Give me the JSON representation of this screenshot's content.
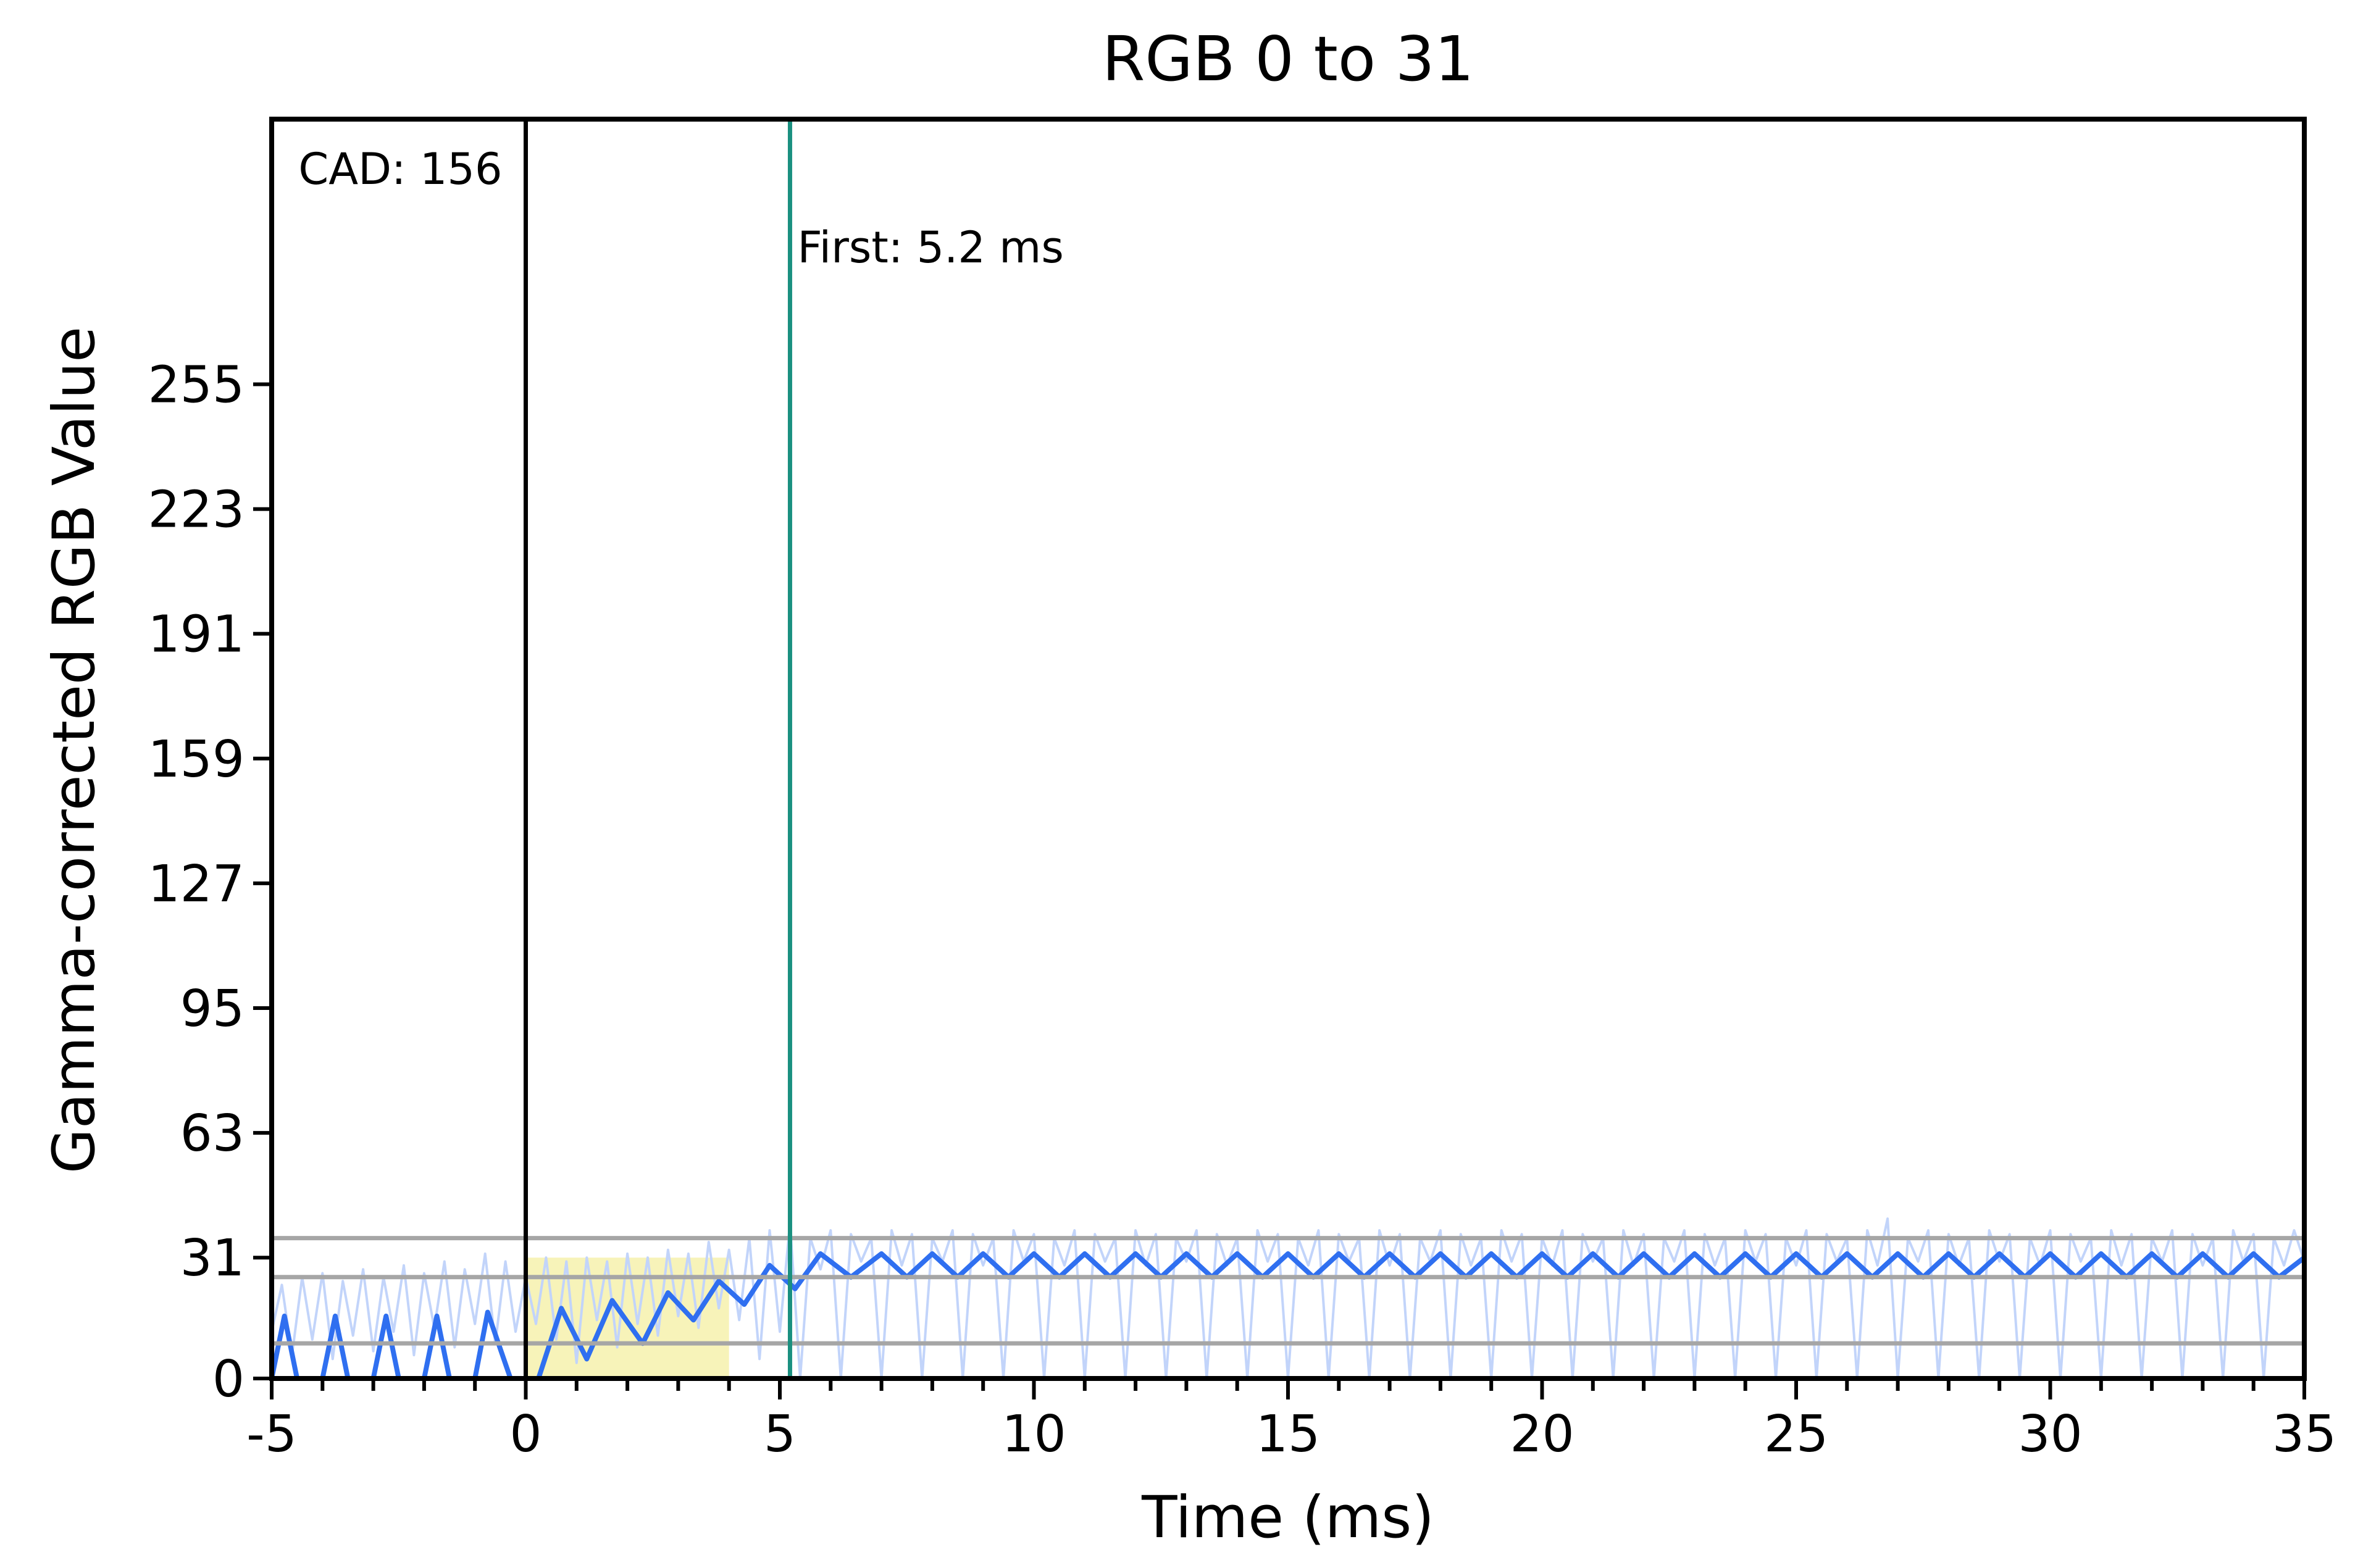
{
  "chart_data": {
    "type": "line",
    "title": "RGB 0 to 31",
    "xlabel": "Time (ms)",
    "ylabel": "Gamma-corrected RGB Value",
    "xlim": [
      -5,
      35
    ],
    "ylim": [
      0,
      323
    ],
    "x_ticks": [
      -5,
      0,
      5,
      10,
      15,
      20,
      25,
      30,
      35
    ],
    "x_tick_labels": [
      "-5",
      "0",
      "5",
      "10",
      "15",
      "20",
      "25",
      "30",
      "35"
    ],
    "y_ticks": [
      0,
      31,
      63,
      95,
      127,
      159,
      191,
      223,
      255
    ],
    "y_tick_labels": [
      "0",
      "31",
      "63",
      "95",
      "127",
      "159",
      "191",
      "223",
      "255"
    ],
    "grid": false,
    "reference_lines": [
      {
        "axis": "y",
        "value": 36,
        "color": "#a6a6a6"
      },
      {
        "axis": "y",
        "value": 26,
        "color": "#a6a6a6"
      },
      {
        "axis": "y",
        "value": 9,
        "color": "#a6a6a6"
      }
    ],
    "vertical_markers": [
      {
        "x": 0,
        "color": "#000000",
        "label": "CAD: 156"
      },
      {
        "x": 5.2,
        "color": "#1a9080",
        "label": "First: 5.2 ms"
      }
    ],
    "shaded_region": {
      "x_start": 0,
      "x_end": 4.0,
      "color": "#f5f0a8"
    },
    "series": [
      {
        "color": "#2f6ff0",
        "points": [
          [
            -5.0,
            0
          ],
          [
            -4.75,
            16
          ],
          [
            -4.5,
            0
          ],
          [
            -4.0,
            0
          ],
          [
            -3.75,
            16
          ],
          [
            -3.5,
            0
          ],
          [
            -3.0,
            0
          ],
          [
            -2.75,
            16
          ],
          [
            -2.5,
            0
          ],
          [
            -2.0,
            0
          ],
          [
            -1.75,
            16
          ],
          [
            -1.5,
            0
          ],
          [
            -1.0,
            0
          ],
          [
            -0.75,
            17
          ],
          [
            -0.3,
            0
          ],
          [
            0.0,
            0
          ],
          [
            0.25,
            0
          ],
          [
            0.7,
            18
          ],
          [
            1.2,
            5
          ],
          [
            1.7,
            20
          ],
          [
            2.3,
            9
          ],
          [
            2.8,
            22
          ],
          [
            3.3,
            15
          ],
          [
            3.8,
            25
          ],
          [
            4.3,
            19
          ],
          [
            4.8,
            29
          ],
          [
            5.3,
            23
          ],
          [
            5.8,
            32
          ],
          [
            6.4,
            26
          ],
          [
            7.0,
            32
          ],
          [
            7.5,
            26
          ],
          [
            8.0,
            32
          ],
          [
            8.5,
            26
          ],
          [
            9.0,
            32
          ],
          [
            9.5,
            26
          ],
          [
            10.0,
            32
          ],
          [
            10.5,
            26
          ],
          [
            11.0,
            32
          ],
          [
            11.5,
            26
          ],
          [
            12.0,
            32
          ],
          [
            12.5,
            26
          ],
          [
            13.0,
            32
          ],
          [
            13.5,
            26
          ],
          [
            14.0,
            32
          ],
          [
            14.5,
            26
          ],
          [
            15.0,
            32
          ],
          [
            15.5,
            26
          ],
          [
            16.0,
            32
          ],
          [
            16.5,
            26
          ],
          [
            17.0,
            32
          ],
          [
            17.5,
            26
          ],
          [
            18.0,
            32
          ],
          [
            18.5,
            26
          ],
          [
            19.0,
            32
          ],
          [
            19.5,
            26
          ],
          [
            20.0,
            32
          ],
          [
            20.5,
            26
          ],
          [
            21.0,
            32
          ],
          [
            21.5,
            26
          ],
          [
            22.0,
            32
          ],
          [
            22.5,
            26
          ],
          [
            23.0,
            32
          ],
          [
            23.5,
            26
          ],
          [
            24.0,
            32
          ],
          [
            24.5,
            26
          ],
          [
            25.0,
            32
          ],
          [
            25.5,
            26
          ],
          [
            26.0,
            32
          ],
          [
            26.5,
            26
          ],
          [
            27.0,
            32
          ],
          [
            27.5,
            26
          ],
          [
            28.0,
            32
          ],
          [
            28.5,
            26
          ],
          [
            29.0,
            32
          ],
          [
            29.5,
            26
          ],
          [
            30.0,
            32
          ],
          [
            30.5,
            26
          ],
          [
            31.0,
            32
          ],
          [
            31.5,
            26
          ],
          [
            32.0,
            32
          ],
          [
            32.5,
            26
          ],
          [
            33.0,
            32
          ],
          [
            33.5,
            26
          ],
          [
            34.0,
            32
          ],
          [
            34.5,
            26
          ],
          [
            35.0,
            31
          ]
        ]
      },
      {
        "color": "#c2d4fa",
        "points": [
          [
            -5.0,
            12
          ],
          [
            -4.8,
            24
          ],
          [
            -4.6,
            6
          ],
          [
            -4.4,
            26
          ],
          [
            -4.2,
            10
          ],
          [
            -4.0,
            27
          ],
          [
            -3.8,
            5
          ],
          [
            -3.6,
            25
          ],
          [
            -3.4,
            11
          ],
          [
            -3.2,
            28
          ],
          [
            -3.0,
            7
          ],
          [
            -2.8,
            26
          ],
          [
            -2.6,
            12
          ],
          [
            -2.4,
            29
          ],
          [
            -2.2,
            6
          ],
          [
            -2.0,
            27
          ],
          [
            -1.8,
            13
          ],
          [
            -1.6,
            30
          ],
          [
            -1.4,
            8
          ],
          [
            -1.2,
            28
          ],
          [
            -1.0,
            14
          ],
          [
            -0.8,
            32
          ],
          [
            -0.6,
            9
          ],
          [
            -0.4,
            30
          ],
          [
            -0.2,
            12
          ],
          [
            0.0,
            26
          ],
          [
            0.2,
            14
          ],
          [
            0.4,
            31
          ],
          [
            0.6,
            10
          ],
          [
            0.8,
            30
          ],
          [
            1.0,
            4
          ],
          [
            1.2,
            31
          ],
          [
            1.4,
            15
          ],
          [
            1.6,
            30
          ],
          [
            1.8,
            8
          ],
          [
            2.0,
            32
          ],
          [
            2.2,
            14
          ],
          [
            2.4,
            31
          ],
          [
            2.6,
            11
          ],
          [
            2.8,
            33
          ],
          [
            3.0,
            16
          ],
          [
            3.2,
            32
          ],
          [
            3.4,
            13
          ],
          [
            3.6,
            35
          ],
          [
            3.8,
            18
          ],
          [
            4.0,
            33
          ],
          [
            4.2,
            15
          ],
          [
            4.4,
            36
          ],
          [
            4.6,
            5
          ],
          [
            4.8,
            38
          ],
          [
            5.0,
            12
          ],
          [
            5.2,
            40
          ],
          [
            5.4,
            0
          ],
          [
            5.6,
            36
          ],
          [
            5.8,
            28
          ],
          [
            6.0,
            38
          ],
          [
            6.2,
            0
          ],
          [
            6.4,
            37
          ],
          [
            6.6,
            30
          ],
          [
            6.8,
            36
          ],
          [
            7.0,
            0
          ],
          [
            7.2,
            38
          ],
          [
            7.4,
            29
          ],
          [
            7.6,
            37
          ],
          [
            7.8,
            0
          ],
          [
            8.0,
            36
          ],
          [
            8.2,
            30
          ],
          [
            8.4,
            38
          ],
          [
            8.6,
            0
          ],
          [
            8.8,
            37
          ],
          [
            9.0,
            29
          ],
          [
            9.2,
            36
          ],
          [
            9.4,
            0
          ],
          [
            9.6,
            38
          ],
          [
            9.8,
            30
          ],
          [
            10.0,
            37
          ],
          [
            10.2,
            0
          ],
          [
            10.4,
            36
          ],
          [
            10.6,
            29
          ],
          [
            10.8,
            38
          ],
          [
            11.0,
            0
          ],
          [
            11.2,
            37
          ],
          [
            11.4,
            30
          ],
          [
            11.6,
            36
          ],
          [
            11.8,
            0
          ],
          [
            12.0,
            38
          ],
          [
            12.2,
            29
          ],
          [
            12.4,
            37
          ],
          [
            12.6,
            0
          ],
          [
            12.8,
            36
          ],
          [
            13.0,
            30
          ],
          [
            13.2,
            38
          ],
          [
            13.4,
            0
          ],
          [
            13.6,
            37
          ],
          [
            13.8,
            29
          ],
          [
            14.0,
            36
          ],
          [
            14.2,
            0
          ],
          [
            14.4,
            38
          ],
          [
            14.6,
            30
          ],
          [
            14.8,
            37
          ],
          [
            15.0,
            0
          ],
          [
            15.2,
            36
          ],
          [
            15.4,
            29
          ],
          [
            15.6,
            38
          ],
          [
            15.8,
            0
          ],
          [
            16.0,
            37
          ],
          [
            16.2,
            30
          ],
          [
            16.4,
            36
          ],
          [
            16.6,
            0
          ],
          [
            16.8,
            38
          ],
          [
            17.0,
            29
          ],
          [
            17.2,
            37
          ],
          [
            17.4,
            0
          ],
          [
            17.6,
            36
          ],
          [
            17.8,
            30
          ],
          [
            18.0,
            38
          ],
          [
            18.2,
            0
          ],
          [
            18.4,
            37
          ],
          [
            18.6,
            29
          ],
          [
            18.8,
            36
          ],
          [
            19.0,
            0
          ],
          [
            19.2,
            38
          ],
          [
            19.4,
            30
          ],
          [
            19.6,
            37
          ],
          [
            19.8,
            0
          ],
          [
            20.0,
            36
          ],
          [
            20.2,
            29
          ],
          [
            20.4,
            38
          ],
          [
            20.6,
            0
          ],
          [
            20.8,
            37
          ],
          [
            21.0,
            30
          ],
          [
            21.2,
            36
          ],
          [
            21.4,
            0
          ],
          [
            21.6,
            38
          ],
          [
            21.8,
            29
          ],
          [
            22.0,
            37
          ],
          [
            22.2,
            0
          ],
          [
            22.4,
            36
          ],
          [
            22.6,
            30
          ],
          [
            22.8,
            38
          ],
          [
            23.0,
            0
          ],
          [
            23.2,
            37
          ],
          [
            23.4,
            29
          ],
          [
            23.6,
            36
          ],
          [
            23.8,
            0
          ],
          [
            24.0,
            38
          ],
          [
            24.2,
            30
          ],
          [
            24.4,
            37
          ],
          [
            24.6,
            0
          ],
          [
            24.8,
            36
          ],
          [
            25.0,
            29
          ],
          [
            25.2,
            38
          ],
          [
            25.4,
            0
          ],
          [
            25.6,
            37
          ],
          [
            25.8,
            30
          ],
          [
            26.0,
            36
          ],
          [
            26.2,
            0
          ],
          [
            26.4,
            38
          ],
          [
            26.6,
            29
          ],
          [
            26.8,
            41
          ],
          [
            27.0,
            0
          ],
          [
            27.2,
            36
          ],
          [
            27.4,
            30
          ],
          [
            27.6,
            38
          ],
          [
            27.8,
            0
          ],
          [
            28.0,
            37
          ],
          [
            28.2,
            29
          ],
          [
            28.4,
            36
          ],
          [
            28.6,
            0
          ],
          [
            28.8,
            38
          ],
          [
            29.0,
            30
          ],
          [
            29.2,
            37
          ],
          [
            29.4,
            0
          ],
          [
            29.6,
            36
          ],
          [
            29.8,
            29
          ],
          [
            30.0,
            38
          ],
          [
            30.2,
            0
          ],
          [
            30.4,
            37
          ],
          [
            30.6,
            30
          ],
          [
            30.8,
            36
          ],
          [
            31.0,
            0
          ],
          [
            31.2,
            38
          ],
          [
            31.4,
            29
          ],
          [
            31.6,
            37
          ],
          [
            31.8,
            0
          ],
          [
            32.0,
            36
          ],
          [
            32.2,
            30
          ],
          [
            32.4,
            38
          ],
          [
            32.6,
            0
          ],
          [
            32.8,
            37
          ],
          [
            33.0,
            29
          ],
          [
            33.2,
            36
          ],
          [
            33.4,
            0
          ],
          [
            33.6,
            38
          ],
          [
            33.8,
            30
          ],
          [
            34.0,
            37
          ],
          [
            34.2,
            0
          ],
          [
            34.4,
            36
          ],
          [
            34.6,
            29
          ],
          [
            34.8,
            38
          ],
          [
            35.0,
            30
          ]
        ]
      }
    ]
  }
}
